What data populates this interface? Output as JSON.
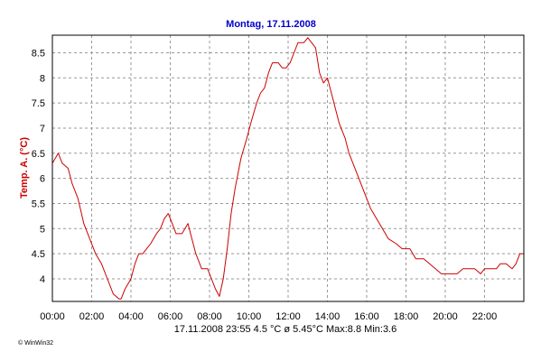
{
  "chart_data": {
    "type": "line",
    "title": "Montag, 17.11.2008",
    "ylabel": "Temp. A. (°C)",
    "xlabel": "",
    "xlim": [
      0,
      24
    ],
    "ylim": [
      3.55,
      8.85
    ],
    "grid": true,
    "x_ticks": [
      "00:00",
      "02:00",
      "04:00",
      "06:00",
      "08:00",
      "10:00",
      "12:00",
      "14:00",
      "16:00",
      "18:00",
      "20:00",
      "22:00"
    ],
    "y_ticks": [
      "4",
      "4.5",
      "5",
      "5.5",
      "6",
      "6.5",
      "7",
      "7.5",
      "8",
      "8.5"
    ],
    "series": [
      {
        "color": "#cc0000",
        "points": [
          [
            0.0,
            6.3
          ],
          [
            0.3,
            6.5
          ],
          [
            0.5,
            6.3
          ],
          [
            0.8,
            6.2
          ],
          [
            1.0,
            5.9
          ],
          [
            1.3,
            5.6
          ],
          [
            1.6,
            5.1
          ],
          [
            1.9,
            4.8
          ],
          [
            2.2,
            4.5
          ],
          [
            2.5,
            4.3
          ],
          [
            2.8,
            4.0
          ],
          [
            3.1,
            3.7
          ],
          [
            3.4,
            3.6
          ],
          [
            3.5,
            3.6
          ],
          [
            3.7,
            3.8
          ],
          [
            4.0,
            4.0
          ],
          [
            4.2,
            4.3
          ],
          [
            4.4,
            4.5
          ],
          [
            4.6,
            4.5
          ],
          [
            4.8,
            4.6
          ],
          [
            5.0,
            4.7
          ],
          [
            5.3,
            4.9
          ],
          [
            5.5,
            5.0
          ],
          [
            5.7,
            5.2
          ],
          [
            5.9,
            5.3
          ],
          [
            6.1,
            5.1
          ],
          [
            6.3,
            4.9
          ],
          [
            6.6,
            4.9
          ],
          [
            6.9,
            5.1
          ],
          [
            7.1,
            4.8
          ],
          [
            7.3,
            4.5
          ],
          [
            7.6,
            4.2
          ],
          [
            7.9,
            4.2
          ],
          [
            8.1,
            4.0
          ],
          [
            8.3,
            3.8
          ],
          [
            8.5,
            3.65
          ],
          [
            8.7,
            4.0
          ],
          [
            8.9,
            4.6
          ],
          [
            9.1,
            5.3
          ],
          [
            9.3,
            5.8
          ],
          [
            9.6,
            6.4
          ],
          [
            9.9,
            6.8
          ],
          [
            10.1,
            7.1
          ],
          [
            10.4,
            7.5
          ],
          [
            10.6,
            7.7
          ],
          [
            10.8,
            7.8
          ],
          [
            11.0,
            8.1
          ],
          [
            11.2,
            8.3
          ],
          [
            11.5,
            8.3
          ],
          [
            11.7,
            8.2
          ],
          [
            11.9,
            8.2
          ],
          [
            12.1,
            8.3
          ],
          [
            12.3,
            8.5
          ],
          [
            12.5,
            8.7
          ],
          [
            12.8,
            8.7
          ],
          [
            13.0,
            8.8
          ],
          [
            13.2,
            8.7
          ],
          [
            13.4,
            8.6
          ],
          [
            13.6,
            8.1
          ],
          [
            13.8,
            7.9
          ],
          [
            14.0,
            8.0
          ],
          [
            14.2,
            7.7
          ],
          [
            14.4,
            7.4
          ],
          [
            14.6,
            7.1
          ],
          [
            14.9,
            6.8
          ],
          [
            15.1,
            6.5
          ],
          [
            15.3,
            6.3
          ],
          [
            15.6,
            6.0
          ],
          [
            15.9,
            5.7
          ],
          [
            16.2,
            5.4
          ],
          [
            16.5,
            5.2
          ],
          [
            16.8,
            5.0
          ],
          [
            17.1,
            4.8
          ],
          [
            17.5,
            4.7
          ],
          [
            17.8,
            4.6
          ],
          [
            18.2,
            4.6
          ],
          [
            18.5,
            4.4
          ],
          [
            18.9,
            4.4
          ],
          [
            19.2,
            4.3
          ],
          [
            19.5,
            4.2
          ],
          [
            19.8,
            4.1
          ],
          [
            20.1,
            4.1
          ],
          [
            20.3,
            4.1
          ],
          [
            20.6,
            4.1
          ],
          [
            20.9,
            4.2
          ],
          [
            21.2,
            4.2
          ],
          [
            21.5,
            4.2
          ],
          [
            21.8,
            4.1
          ],
          [
            22.0,
            4.2
          ],
          [
            22.3,
            4.2
          ],
          [
            22.6,
            4.2
          ],
          [
            22.8,
            4.3
          ],
          [
            23.1,
            4.3
          ],
          [
            23.4,
            4.2
          ],
          [
            23.6,
            4.3
          ],
          [
            23.8,
            4.5
          ],
          [
            24.0,
            4.5
          ]
        ]
      }
    ]
  },
  "colors": {
    "line": "#cc0000",
    "title": "#0000cc",
    "ylabel": "#cc0000",
    "grid": "#999999"
  },
  "footer": {
    "text": "17.11.2008  23:55   4.5 °C   ø 5.45°C  Max:8.8  Min:3.6"
  },
  "logo": {
    "text": "© WinWin32"
  }
}
